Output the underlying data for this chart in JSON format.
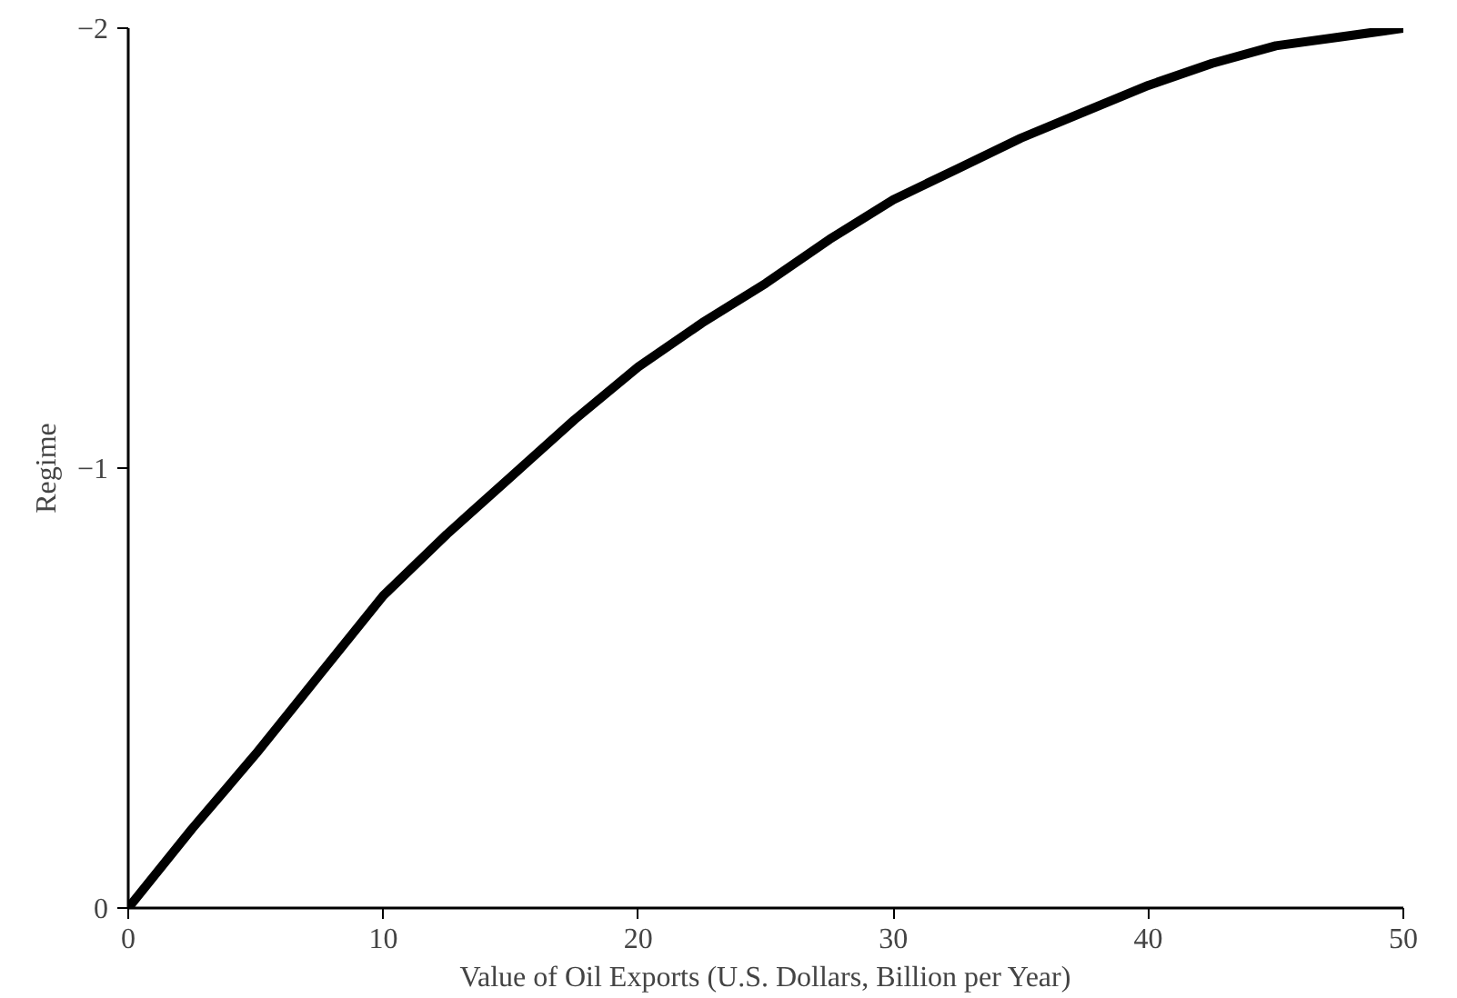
{
  "chart_data": {
    "type": "line",
    "xlabel": "Value of Oil Exports (U.S. Dollars, Billion per Year)",
    "ylabel": "Regime",
    "x": [
      0,
      2.5,
      5,
      7.5,
      10,
      12.5,
      15,
      17.5,
      20,
      22.5,
      25,
      27.5,
      30,
      32.5,
      35,
      37.5,
      40,
      42.5,
      45,
      47.5,
      50
    ],
    "series": [
      {
        "color": "#000000",
        "values": [
          0,
          -0.18,
          -0.35,
          -0.53,
          -0.71,
          -0.85,
          -0.98,
          -1.11,
          -1.23,
          -1.33,
          -1.42,
          -1.52,
          -1.61,
          -1.68,
          -1.75,
          -1.81,
          -1.87,
          -1.92,
          -1.96,
          -1.98,
          -2.0
        ]
      }
    ],
    "xlim": [
      0,
      50
    ],
    "xticks": [
      0,
      10,
      20,
      30,
      40,
      50
    ],
    "ylim": [
      0,
      -2
    ],
    "yticks": [
      0,
      -1,
      -2
    ],
    "grid": false,
    "marker": "none",
    "line_style": "solid"
  }
}
